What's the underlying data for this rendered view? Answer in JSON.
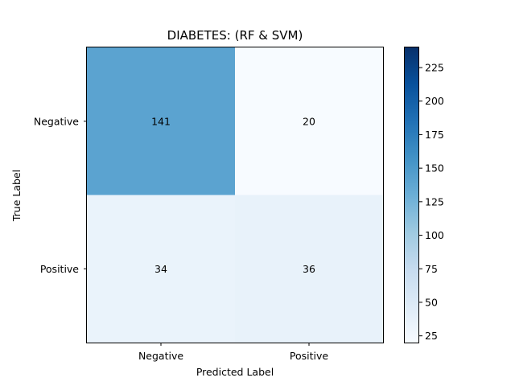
{
  "chart_data": {
    "type": "heatmap",
    "title": "DIABETES: (RF & SVM)",
    "xlabel": "Predicted Label",
    "ylabel": "True Label",
    "x_categories": [
      "Negative",
      "Positive"
    ],
    "y_categories": [
      "Negative",
      "Positive"
    ],
    "matrix": [
      [
        141,
        20
      ],
      [
        34,
        36
      ]
    ],
    "colormap": "Blues",
    "colorbar": {
      "range": [
        20,
        240
      ],
      "ticks": [
        25,
        50,
        75,
        100,
        125,
        150,
        175,
        200,
        225
      ],
      "tick_labels": [
        "25",
        "50",
        "75",
        "100",
        "125",
        "150",
        "175",
        "200",
        "225"
      ]
    },
    "grid": false
  }
}
